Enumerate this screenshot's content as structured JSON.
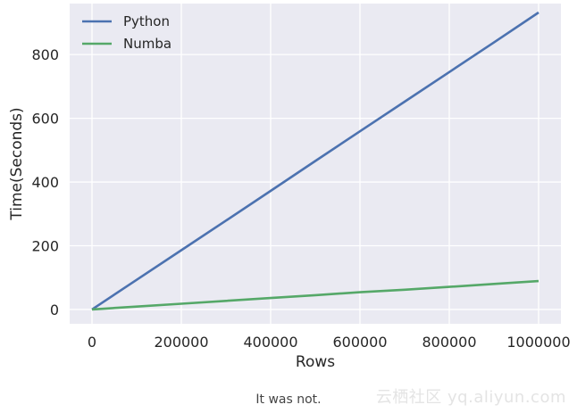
{
  "chart_data": {
    "type": "line",
    "title": "",
    "xlabel": "Rows",
    "ylabel": "Time(Seconds)",
    "xlim": [
      -50000,
      1050000
    ],
    "ylim": [
      -45,
      960
    ],
    "xticks": [
      0,
      200000,
      400000,
      600000,
      800000,
      1000000
    ],
    "xtick_labels": [
      "0",
      "200000",
      "400000",
      "600000",
      "800000",
      "1000000"
    ],
    "yticks": [
      0,
      200,
      400,
      600,
      800
    ],
    "ytick_labels": [
      "0",
      "200",
      "400",
      "600",
      "800"
    ],
    "grid": true,
    "legend_position": "top-left",
    "series": [
      {
        "name": "Python",
        "color": "#4c72b0",
        "x": [
          0,
          100000,
          200000,
          300000,
          400000,
          500000,
          600000,
          700000,
          800000,
          900000,
          1000000
        ],
        "y": [
          0,
          93,
          186,
          279,
          372,
          466,
          559,
          652,
          745,
          838,
          932
        ]
      },
      {
        "name": "Numba",
        "color": "#55a868",
        "x": [
          0,
          100000,
          200000,
          300000,
          400000,
          500000,
          600000,
          700000,
          800000,
          900000,
          1000000
        ],
        "y": [
          0,
          9,
          18,
          27,
          36,
          45,
          54,
          62,
          71,
          80,
          89
        ]
      }
    ]
  },
  "caption": "It was not.",
  "watermark": "云栖社区 yq.aliyun.com"
}
